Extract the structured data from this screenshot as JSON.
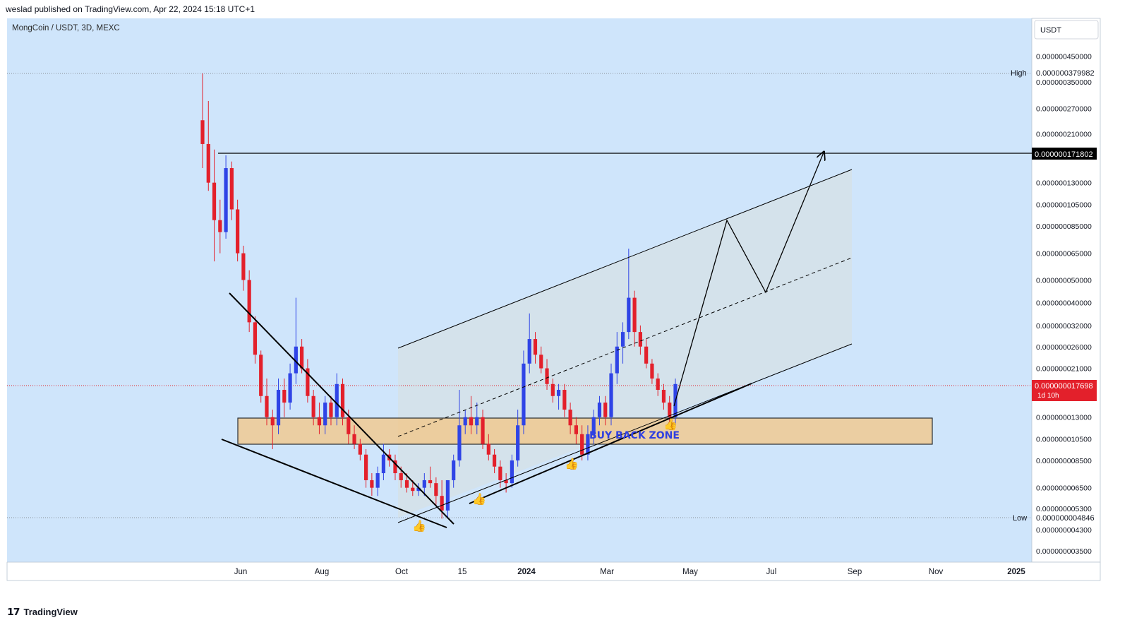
{
  "header": {
    "published": "weslad published on TradingView.com, Apr 22, 2024 15:18 UTC+1"
  },
  "chart": {
    "symbol_line": "MongCoin / USDT, 3D, MEXC",
    "currency": "USDT",
    "annotation": "BUY BACK ZONE",
    "high_label": "High",
    "low_label": "Low",
    "high_value": "0.000000379982",
    "low_value": "0.000000004846",
    "target_value": "0.000000171802",
    "current_value": "0.000000017698",
    "countdown": "1d 10h"
  },
  "footer": {
    "brand": "TradingView"
  },
  "colors": {
    "background": "#cfe5fb",
    "up": "#2f44e6",
    "down": "#e3202b",
    "zone": "#f2c98c",
    "channel": "#d4e1ea"
  },
  "chart_data": {
    "type": "candlestick",
    "scale": "log",
    "x_ticks": [
      "Jun",
      "Aug",
      "Oct",
      "15",
      "2024",
      "Mar",
      "May",
      "Jul",
      "Sep",
      "Nov",
      "2025"
    ],
    "y_ticks": [
      "0.000000450000",
      "0.000000350000",
      "0.000000270000",
      "0.000000210000",
      "0.000000130000",
      "0.000000105000",
      "0.000000085000",
      "0.000000065000",
      "0.000000050000",
      "0.000000040000",
      "0.000000032000",
      "0.000000026000",
      "0.000000021000",
      "0.000000013000",
      "0.000000010500",
      "0.000000008500",
      "0.000000006500",
      "0.000000005300",
      "0.000000004300",
      "0.000000003500"
    ],
    "y_range": [
      3.1e-09,
      6e-07
    ],
    "candles": [
      [
        2.4e-07,
        3.8e-07,
        1.5e-07,
        1.9e-07
      ],
      [
        1.9e-07,
        2.9e-07,
        1.2e-07,
        1.3e-07
      ],
      [
        1.3e-07,
        1.8e-07,
        6e-08,
        9e-08
      ],
      [
        9e-08,
        1.1e-07,
        6.5e-08,
        8e-08
      ],
      [
        8e-08,
        1.7e-07,
        7.5e-08,
        1.5e-07
      ],
      [
        1.5e-07,
        1.6e-07,
        9e-08,
        1e-07
      ],
      [
        1e-07,
        1.1e-07,
        6e-08,
        6.5e-08
      ],
      [
        6.5e-08,
        7e-08,
        4.5e-08,
        5e-08
      ],
      [
        5e-08,
        5.5e-08,
        3e-08,
        3.3e-08
      ],
      [
        3.3e-08,
        3.5e-08,
        2.2e-08,
        2.4e-08
      ],
      [
        2.4e-08,
        2.5e-08,
        1.5e-08,
        1.6e-08
      ],
      [
        1.6e-08,
        1.9e-08,
        1.2e-08,
        1.3e-08
      ],
      [
        1.3e-08,
        1.4e-08,
        9.5e-09,
        1.2e-08
      ],
      [
        1.2e-08,
        1.9e-08,
        1.1e-08,
        1.7e-08
      ],
      [
        1.7e-08,
        1.9e-08,
        1.3e-08,
        1.5e-08
      ],
      [
        1.5e-08,
        2.2e-08,
        1.4e-08,
        2e-08
      ],
      [
        2e-08,
        4.2e-08,
        1.8e-08,
        2.6e-08
      ],
      [
        2.6e-08,
        2.8e-08,
        2e-08,
        2.1e-08
      ],
      [
        2.1e-08,
        2.3e-08,
        1.5e-08,
        1.6e-08
      ],
      [
        1.6e-08,
        1.7e-08,
        1.2e-08,
        1.3e-08
      ],
      [
        1.3e-08,
        1.5e-08,
        1.1e-08,
        1.2e-08
      ],
      [
        1.2e-08,
        1.6e-08,
        1.1e-08,
        1.5e-08
      ],
      [
        1.5e-08,
        1.6e-08,
        1.2e-08,
        1.3e-08
      ],
      [
        1.3e-08,
        2e-08,
        1.2e-08,
        1.8e-08
      ],
      [
        1.8e-08,
        1.9e-08,
        1.2e-08,
        1.3e-08
      ],
      [
        1.3e-08,
        1.4e-08,
        1e-08,
        1.1e-08
      ],
      [
        1.1e-08,
        1.2e-08,
        9.5e-09,
        1e-08
      ],
      [
        1e-08,
        1.05e-08,
        8.5e-09,
        9e-09
      ],
      [
        9e-09,
        9.5e-09,
        6.5e-09,
        7e-09
      ],
      [
        7e-09,
        7.5e-09,
        6e-09,
        6.5e-09
      ],
      [
        6.5e-09,
        8e-09,
        6e-09,
        7.5e-09
      ],
      [
        7.5e-09,
        1e-08,
        7e-09,
        9e-09
      ],
      [
        9e-09,
        9.5e-09,
        8e-09,
        8.5e-09
      ],
      [
        8.5e-09,
        9e-09,
        7e-09,
        7.5e-09
      ],
      [
        7.5e-09,
        8e-09,
        6.5e-09,
        7e-09
      ],
      [
        7e-09,
        7.5e-09,
        6.2e-09,
        6.5e-09
      ],
      [
        6.5e-09,
        7e-09,
        6e-09,
        6.3e-09
      ],
      [
        6.3e-09,
        6.8e-09,
        6e-09,
        6.5e-09
      ],
      [
        6.5e-09,
        7.5e-09,
        6e-09,
        7e-09
      ],
      [
        7e-09,
        8e-09,
        6.5e-09,
        6.8e-09
      ],
      [
        6.8e-09,
        7.2e-09,
        5.5e-09,
        6e-09
      ],
      [
        6e-09,
        7e-09,
        4.8e-09,
        5.2e-09
      ],
      [
        5.2e-09,
        7e-09,
        4.8e-09,
        7e-09
      ],
      [
        7e-09,
        9e-09,
        6.5e-09,
        8.5e-09
      ],
      [
        8.5e-09,
        1.7e-08,
        8e-09,
        1.2e-08
      ],
      [
        1.2e-08,
        1.4e-08,
        1.1e-08,
        1.3e-08
      ],
      [
        1.3e-08,
        1.6e-08,
        1.1e-08,
        1.2e-08
      ],
      [
        1.2e-08,
        1.5e-08,
        1.1e-08,
        1.3e-08
      ],
      [
        1.3e-08,
        1.4e-08,
        9.5e-09,
        1e-08
      ],
      [
        1e-08,
        1.1e-08,
        8.5e-09,
        9e-09
      ],
      [
        9e-09,
        9.5e-09,
        7.5e-09,
        8e-09
      ],
      [
        8e-09,
        8.5e-09,
        6.5e-09,
        7e-09
      ],
      [
        7e-09,
        7.5e-09,
        6.2e-09,
        6.8e-09
      ],
      [
        6.8e-09,
        9e-09,
        6.5e-09,
        8.5e-09
      ],
      [
        8.5e-09,
        1.4e-08,
        8e-09,
        1.2e-08
      ],
      [
        1.2e-08,
        2.5e-08,
        1.1e-08,
        2.2e-08
      ],
      [
        2.2e-08,
        3.6e-08,
        2e-08,
        2.8e-08
      ],
      [
        2.8e-08,
        3e-08,
        2.2e-08,
        2.4e-08
      ],
      [
        2.4e-08,
        2.6e-08,
        2e-08,
        2.1e-08
      ],
      [
        2.1e-08,
        2.3e-08,
        1.7e-08,
        1.8e-08
      ],
      [
        1.8e-08,
        1.9e-08,
        1.5e-08,
        1.6e-08
      ],
      [
        1.6e-08,
        1.8e-08,
        1.4e-08,
        1.7e-08
      ],
      [
        1.7e-08,
        1.8e-08,
        1.3e-08,
        1.4e-08
      ],
      [
        1.4e-08,
        1.5e-08,
        1.1e-08,
        1.2e-08
      ],
      [
        1.2e-08,
        1.3e-08,
        1e-08,
        1.1e-08
      ],
      [
        1.1e-08,
        1.2e-08,
        8.5e-09,
        9e-09
      ],
      [
        9e-09,
        1.2e-08,
        8.5e-09,
        1.1e-08
      ],
      [
        1.1e-08,
        1.4e-08,
        1e-08,
        1.3e-08
      ],
      [
        1.3e-08,
        1.6e-08,
        1.2e-08,
        1.5e-08
      ],
      [
        1.5e-08,
        1.6e-08,
        1.2e-08,
        1.3e-08
      ],
      [
        1.3e-08,
        2.2e-08,
        1.2e-08,
        2e-08
      ],
      [
        2e-08,
        3e-08,
        1.8e-08,
        2.6e-08
      ],
      [
        2.6e-08,
        3.3e-08,
        2.2e-08,
        3e-08
      ],
      [
        3e-08,
        6.8e-08,
        2.8e-08,
        4.2e-08
      ],
      [
        4.2e-08,
        4.5e-08,
        2.6e-08,
        3e-08
      ],
      [
        3e-08,
        3.2e-08,
        2.4e-08,
        2.6e-08
      ],
      [
        2.6e-08,
        2.8e-08,
        2.1e-08,
        2.2e-08
      ],
      [
        2.2e-08,
        2.3e-08,
        1.8e-08,
        1.9e-08
      ],
      [
        1.9e-08,
        2e-08,
        1.6e-08,
        1.7e-08
      ],
      [
        1.7e-08,
        1.8e-08,
        1.4e-08,
        1.5e-08
      ],
      [
        1.5e-08,
        1.6e-08,
        1.2e-08,
        1.3e-08
      ],
      [
        1.3e-08,
        1.9e-08,
        1.2e-08,
        1.8e-08
      ]
    ],
    "overlays": [
      "falling wedge support and resistance trendlines",
      "horizontal buy back zone box",
      "ascending channel with dashed midline",
      "horizontal resistance line at target",
      "projected zigzag path with arrow"
    ]
  }
}
